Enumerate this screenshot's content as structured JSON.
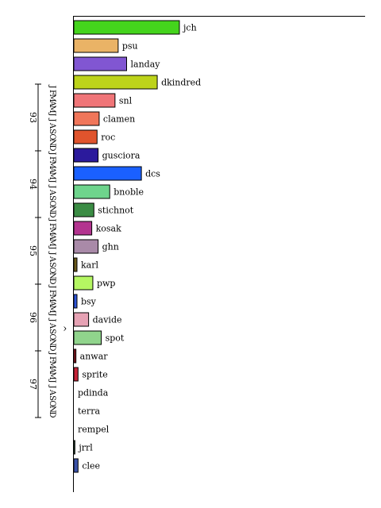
{
  "chart_data": {
    "type": "bar",
    "orientation": "horizontal",
    "categories": [
      "jch",
      "psu",
      "landay",
      "dkindred",
      "snl",
      "clamen",
      "roc",
      "gusciora",
      "dcs",
      "bnoble",
      "stichnot",
      "kosak",
      "ghn",
      "karl",
      "pwp",
      "bsy",
      "davide",
      "spot",
      "anwar",
      "sprite",
      "pdinda",
      "terra",
      "rempel",
      "jrrl",
      "clee"
    ],
    "values": [
      100,
      42,
      50,
      79,
      39,
      24,
      22,
      23,
      64,
      34,
      19,
      17,
      23,
      3,
      18,
      3,
      14,
      26,
      2,
      4,
      0,
      0,
      0,
      1,
      4
    ],
    "colors": [
      "#44d41c",
      "#eab366",
      "#8156d2",
      "#bdd31a",
      "#f07578",
      "#f0765a",
      "#e0542d",
      "#2b1a9c",
      "#1a60ff",
      "#6ed48c",
      "#3b8c44",
      "#b3348f",
      "#a98aa8",
      "#6b5a1b",
      "#b5f762",
      "#2e54d8",
      "#e6a2b4",
      "#90d48c",
      "#8e1822",
      "#c42236",
      "#888888",
      "#888888",
      "#888888",
      "#3a7a50",
      "#3a52a8"
    ],
    "xlim": [
      0,
      100
    ],
    "title": "",
    "xlabel": "",
    "ylabel": "",
    "grid": false,
    "legend": "none"
  },
  "side_axis": {
    "month_initials": [
      "J",
      "F",
      "M",
      "A",
      "M",
      "J",
      "J",
      "A",
      "S",
      "O",
      "N",
      "D"
    ],
    "years": [
      "93",
      "94",
      "95",
      "96",
      "97"
    ],
    "months_per_year": [
      12,
      12,
      12,
      12,
      12
    ],
    "marker": "^",
    "marker_position_months": 44
  }
}
